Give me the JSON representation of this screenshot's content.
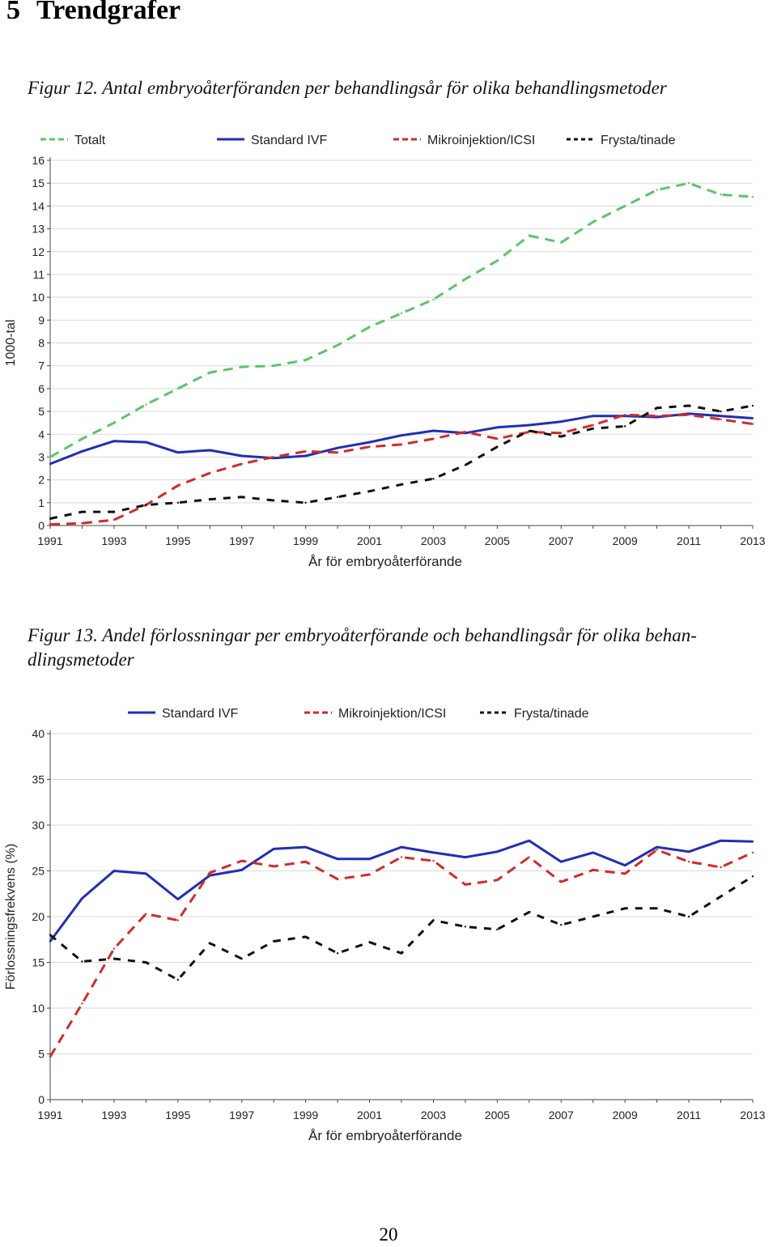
{
  "section": {
    "number": "5",
    "title": "Trendgrafer"
  },
  "figure12": {
    "caption_prefix": "Figur 12.",
    "caption_text": "Antal embryoåterföranden per behandlingsår för olika behandlingsmetoder"
  },
  "figure13": {
    "caption_prefix": "Figur 13.",
    "caption_line1": "Andel förlossningar per embryoåterförande och behandlingsår för olika behan-",
    "caption_line2": "dlingsmetoder"
  },
  "page_number": "20",
  "chart_data": [
    {
      "type": "line",
      "title": "",
      "ylabel": "1000-tal",
      "xlabel": "År för embryoåterförande",
      "ylim": [
        0,
        16
      ],
      "yticks": [
        0,
        1,
        2,
        3,
        4,
        5,
        6,
        7,
        8,
        9,
        10,
        11,
        12,
        13,
        14,
        15,
        16
      ],
      "x": [
        1991,
        1992,
        1993,
        1994,
        1995,
        1996,
        1997,
        1998,
        1999,
        2000,
        2001,
        2002,
        2003,
        2004,
        2005,
        2006,
        2007,
        2008,
        2009,
        2010,
        2011,
        2012,
        2013
      ],
      "xtick_labels": [
        "1991",
        "1993",
        "1995",
        "1997",
        "1999",
        "2001",
        "2003",
        "2005",
        "2007",
        "2009",
        "2011",
        "2013"
      ],
      "grid": true,
      "legend_position": "top",
      "series": [
        {
          "name": "Totalt",
          "color": "#5cc46a",
          "style": "dashed",
          "values": [
            3.0,
            3.8,
            4.5,
            5.3,
            6.0,
            6.7,
            6.95,
            7.0,
            7.25,
            7.9,
            8.7,
            9.3,
            9.9,
            10.8,
            11.6,
            12.7,
            12.4,
            13.3,
            14.0,
            14.7,
            15.0,
            14.5,
            14.4
          ]
        },
        {
          "name": "Standard IVF",
          "color": "#1f2fb4",
          "style": "solid",
          "values": [
            2.7,
            3.25,
            3.7,
            3.65,
            3.2,
            3.3,
            3.05,
            2.95,
            3.05,
            3.4,
            3.65,
            3.95,
            4.15,
            4.05,
            4.3,
            4.4,
            4.55,
            4.8,
            4.8,
            4.75,
            4.9,
            4.8,
            4.7
          ]
        },
        {
          "name": "Mikroinjektion/ICSI",
          "color": "#d42a2a",
          "style": "dashed",
          "values": [
            0.05,
            0.1,
            0.25,
            0.9,
            1.75,
            2.3,
            2.7,
            3.0,
            3.25,
            3.2,
            3.45,
            3.55,
            3.8,
            4.1,
            3.8,
            4.1,
            4.05,
            4.4,
            4.85,
            4.8,
            4.85,
            4.65,
            4.45
          ]
        },
        {
          "name": "Frysta/tinade",
          "color": "#111111",
          "style": "dashed",
          "values": [
            0.3,
            0.6,
            0.6,
            0.9,
            1.0,
            1.15,
            1.25,
            1.1,
            1.0,
            1.25,
            1.5,
            1.8,
            2.05,
            2.65,
            3.45,
            4.15,
            3.9,
            4.25,
            4.35,
            5.15,
            5.25,
            5.0,
            5.25
          ]
        }
      ]
    },
    {
      "type": "line",
      "title": "",
      "ylabel": "Förlossningsfrekvens (%)",
      "xlabel": "År för embryoåterförande",
      "ylim": [
        0,
        40
      ],
      "yticks": [
        0,
        5,
        10,
        15,
        20,
        25,
        30,
        35,
        40
      ],
      "x": [
        1991,
        1992,
        1993,
        1994,
        1995,
        1996,
        1997,
        1998,
        1999,
        2000,
        2001,
        2002,
        2003,
        2004,
        2005,
        2006,
        2007,
        2008,
        2009,
        2010,
        2011,
        2012,
        2013
      ],
      "xtick_labels": [
        "1991",
        "1993",
        "1995",
        "1997",
        "1999",
        "2001",
        "2003",
        "2005",
        "2007",
        "2009",
        "2011",
        "2013"
      ],
      "grid": true,
      "legend_position": "top",
      "series": [
        {
          "name": "Standard IVF",
          "color": "#1f2fb4",
          "style": "solid",
          "values": [
            17.3,
            22.0,
            25.0,
            24.7,
            21.9,
            24.5,
            25.1,
            27.4,
            27.6,
            26.3,
            26.3,
            27.6,
            27.0,
            26.5,
            27.1,
            28.3,
            26.0,
            27.0,
            25.6,
            27.6,
            27.1,
            28.3,
            28.2
          ]
        },
        {
          "name": "Mikroinjektion/ICSI",
          "color": "#d42a2a",
          "style": "dashed",
          "values": [
            4.7,
            10.5,
            16.5,
            20.3,
            19.6,
            24.8,
            26.1,
            25.5,
            26.0,
            24.1,
            24.6,
            26.5,
            26.1,
            23.5,
            24.0,
            26.5,
            23.8,
            25.1,
            24.7,
            27.3,
            26.0,
            25.4,
            27.0
          ]
        },
        {
          "name": "Frysta/tinade",
          "color": "#111111",
          "style": "dashed",
          "values": [
            18.0,
            15.1,
            15.4,
            15.0,
            13.1,
            17.1,
            15.4,
            17.3,
            17.8,
            16.0,
            17.2,
            16.0,
            19.6,
            18.9,
            18.6,
            20.5,
            19.1,
            20.0,
            20.9,
            20.9,
            20.0,
            22.2,
            24.4
          ]
        }
      ]
    }
  ]
}
